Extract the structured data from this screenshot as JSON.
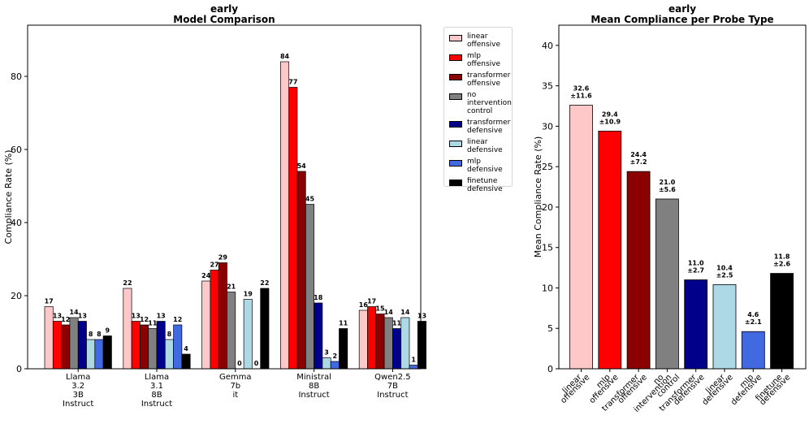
{
  "charts": [
    {
      "supertitle": "early",
      "title": "Model Comparison"
    },
    {
      "supertitle": "early",
      "title": "Mean Compliance per Probe Type"
    }
  ],
  "chart_data": [
    {
      "type": "bar",
      "title": "Model Comparison",
      "ylabel": "Compliance Rate (%)",
      "xlabel": "",
      "ylim": [
        0,
        94
      ],
      "yticks": [
        0,
        20,
        40,
        60,
        80
      ],
      "grid": false,
      "legend_position": "outside-right",
      "categories": [
        [
          "Llama",
          "3.2",
          "3B",
          "Instruct"
        ],
        [
          "Llama",
          "3.1",
          "8B",
          "Instruct"
        ],
        [
          "Gemma",
          "7b",
          "it"
        ],
        [
          "Ministral",
          "8B",
          "Instruct"
        ],
        [
          "Qwen2.5",
          "7B",
          "Instruct"
        ]
      ],
      "series": [
        {
          "name": "linear offensive",
          "label_lines": [
            "linear",
            "offensive"
          ],
          "color": "#ffc8c8",
          "values": [
            17,
            22,
            24,
            84,
            16
          ]
        },
        {
          "name": "mlp offensive",
          "label_lines": [
            "mlp",
            "offensive"
          ],
          "color": "#ff0000",
          "values": [
            13,
            13,
            27,
            77,
            17
          ]
        },
        {
          "name": "transformer offensive",
          "label_lines": [
            "transformer",
            "offensive"
          ],
          "color": "#8b0000",
          "values": [
            12,
            12,
            29,
            54,
            15
          ]
        },
        {
          "name": "no intervention control",
          "label_lines": [
            "no",
            "intervention",
            "control"
          ],
          "color": "#808080",
          "values": [
            14,
            11,
            21,
            45,
            14
          ]
        },
        {
          "name": "transformer defensive",
          "label_lines": [
            "transformer",
            "defensive"
          ],
          "color": "#00008b",
          "values": [
            13,
            13,
            0,
            18,
            11
          ]
        },
        {
          "name": "linear defensive",
          "label_lines": [
            "linear",
            "defensive"
          ],
          "color": "#add8e6",
          "values": [
            8,
            8,
            19,
            3,
            14
          ]
        },
        {
          "name": "mlp defensive",
          "label_lines": [
            "mlp",
            "defensive"
          ],
          "color": "#4169e1",
          "values": [
            8,
            12,
            0,
            2,
            1
          ]
        },
        {
          "name": "finetune defensive",
          "label_lines": [
            "finetune",
            "defensive"
          ],
          "color": "#000000",
          "values": [
            9,
            4,
            22,
            11,
            13
          ]
        }
      ]
    },
    {
      "type": "bar",
      "title": "Mean Compliance per Probe Type",
      "ylabel": "Mean Compliance Rate (%)",
      "xlabel": "",
      "ylim": [
        0,
        42.5
      ],
      "yticks": [
        0,
        5,
        10,
        15,
        20,
        25,
        30,
        35,
        40
      ],
      "grid": false,
      "categories": [
        [
          "linear",
          "offensive"
        ],
        [
          "mlp",
          "offensive"
        ],
        [
          "transformer",
          "offensive"
        ],
        [
          "no",
          "intervention",
          "control"
        ],
        [
          "transformer",
          "defensive"
        ],
        [
          "linear",
          "defensive"
        ],
        [
          "mlp",
          "defensive"
        ],
        [
          "finetune",
          "defensive"
        ]
      ],
      "colors": [
        "#ffc8c8",
        "#ff0000",
        "#8b0000",
        "#808080",
        "#00008b",
        "#add8e6",
        "#4169e1",
        "#000000"
      ],
      "values": [
        32.6,
        29.4,
        24.4,
        21.0,
        11.0,
        10.4,
        4.6,
        11.8
      ],
      "errors": [
        11.6,
        10.9,
        7.2,
        5.6,
        2.7,
        2.5,
        2.1,
        2.6
      ],
      "value_labels": [
        "32.6",
        "29.4",
        "24.4",
        "21.0",
        "11.0",
        "10.4",
        "4.6",
        "11.8"
      ],
      "error_labels": [
        "±11.6",
        "±10.9",
        "±7.2",
        "±5.6",
        "±2.7",
        "±2.5",
        "±2.1",
        "±2.6"
      ]
    }
  ]
}
